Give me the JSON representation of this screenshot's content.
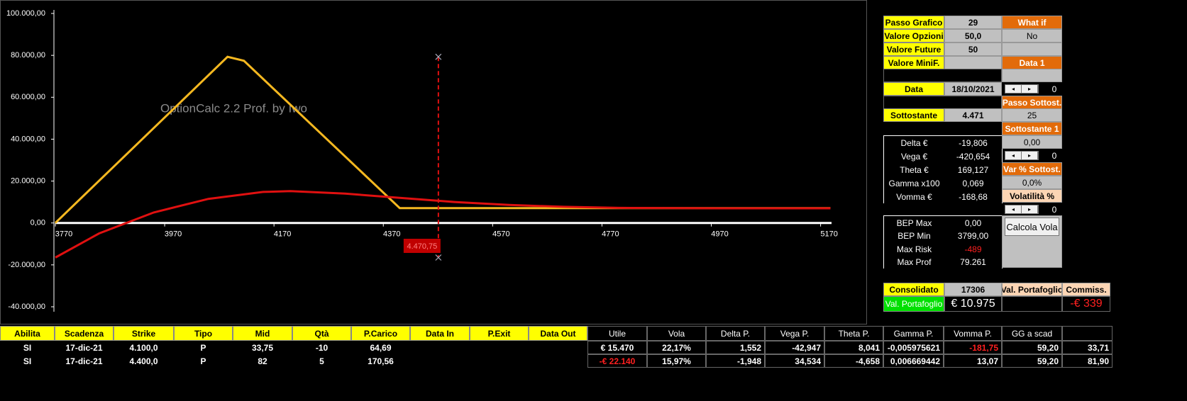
{
  "chart_data": {
    "type": "line",
    "watermark": "OptionCalc 2.2 Prof. by Iwo",
    "xlim": [
      3770,
      5190
    ],
    "xticks": [
      3770,
      3970,
      4170,
      4370,
      4570,
      4770,
      4970,
      5170
    ],
    "ylim": [
      -40000,
      100000
    ],
    "yticks": [
      {
        "value": -40000,
        "label": "-40.000,00"
      },
      {
        "value": -20000,
        "label": "-20.000,00"
      },
      {
        "value": 0,
        "label": "0,00"
      },
      {
        "value": 20000,
        "label": "20.000,00"
      },
      {
        "value": 40000,
        "label": "40.000,00"
      },
      {
        "value": 60000,
        "label": "60.000,00"
      },
      {
        "value": 80000,
        "label": "80.000,00"
      },
      {
        "value": 100000,
        "label": "100.000,00"
      }
    ],
    "series": [
      {
        "color": "#f5b820",
        "x": [
          3770,
          4085,
          4115,
          4400,
          5188
        ],
        "values": [
          0,
          79300,
          77400,
          7100,
          7100
        ]
      },
      {
        "color": "#e01010",
        "x": [
          3770,
          3850,
          3950,
          4050,
          4150,
          4200,
          4300,
          4400,
          4500,
          4600,
          4700,
          4800,
          5000,
          5188
        ],
        "values": [
          -16500,
          -5000,
          5000,
          11500,
          14800,
          15200,
          14000,
          12000,
          10000,
          8600,
          7700,
          7200,
          7000,
          7000
        ]
      }
    ],
    "marker": {
      "x": 4470.75,
      "label": "4.470,75",
      "values": [
        79300,
        -16500
      ],
      "color": "#e01010"
    }
  },
  "panel": {
    "passo_grafico": {
      "label": "Passo Grafico",
      "value": "29"
    },
    "valore_opzioni": {
      "label": "Valore Opzioni",
      "value": "50,0"
    },
    "valore_future": {
      "label": "Valore Future",
      "value": "50"
    },
    "valore_minif": {
      "label": "Valore MiniF."
    },
    "data": {
      "label": "Data",
      "value": "18/10/2021"
    },
    "sottostante": {
      "label": "Sottostante",
      "value": "4.471"
    },
    "what_if": {
      "label": "What if",
      "value": "No"
    },
    "data1": {
      "label": "Data 1",
      "spin": "0"
    },
    "passo_sottost": {
      "label": "Passo Sottost.",
      "value": "25"
    },
    "sottostante1": {
      "label": "Sottostante 1",
      "value": "0,00",
      "spin": "0"
    },
    "var_sottost": {
      "label": "Var % Sottost.",
      "value": "0,0%"
    },
    "volatilita": {
      "label": "Volatilità %",
      "spin": "0"
    },
    "button": "Calcola Vola",
    "greeks": [
      [
        "Delta €",
        "-19,806"
      ],
      [
        "Vega €",
        "-420,654"
      ],
      [
        "Theta €",
        "169,127"
      ],
      [
        "Gamma x100",
        "0,069"
      ],
      [
        "Vomma €",
        "-168,68"
      ]
    ],
    "bep": [
      [
        "BEP Max",
        "0,00"
      ],
      [
        "BEP Min",
        "3799,00"
      ],
      [
        "Max Risk",
        "-489"
      ],
      [
        "Max Prof",
        "79.261"
      ]
    ],
    "consolidato": {
      "label": "Consolidato",
      "value": "17306"
    },
    "val_portafoglio": {
      "label": "Val. Portafoglio",
      "value": "€ 10.975"
    },
    "val_portafoglio_header": "Val. Portafoglio",
    "commiss": {
      "label": "Commiss.",
      "value": "-€ 339"
    }
  },
  "table": {
    "headers": [
      "Abilita",
      "Scadenza",
      "Strike",
      "Tipo",
      "Mid",
      "Qtà",
      "P.Carico",
      "Data In",
      "P.Exit",
      "Data Out",
      "Utile",
      "Vola",
      "Delta P.",
      "Vega P.",
      "Theta P.",
      "Gamma P.",
      "Vomma P.",
      "GG a scad",
      null
    ],
    "rows": [
      [
        "SI",
        "17-dic-21",
        "4.100,0",
        "P",
        "33,75",
        "-10",
        "64,69",
        null,
        null,
        null,
        "€ 15.470",
        "22,17%",
        "1,552",
        "-42,947",
        "8,041",
        "-0,005975621",
        "-181,75",
        "59,20",
        "33,71"
      ],
      [
        "SI",
        "17-dic-21",
        "4.400,0",
        "P",
        "82",
        "5",
        "170,56",
        null,
        null,
        null,
        "-€ 22.140",
        "15,97%",
        "-1,948",
        "34,534",
        "-4,658",
        "0,006669442",
        "13,07",
        "59,20",
        "81,90"
      ]
    ]
  }
}
